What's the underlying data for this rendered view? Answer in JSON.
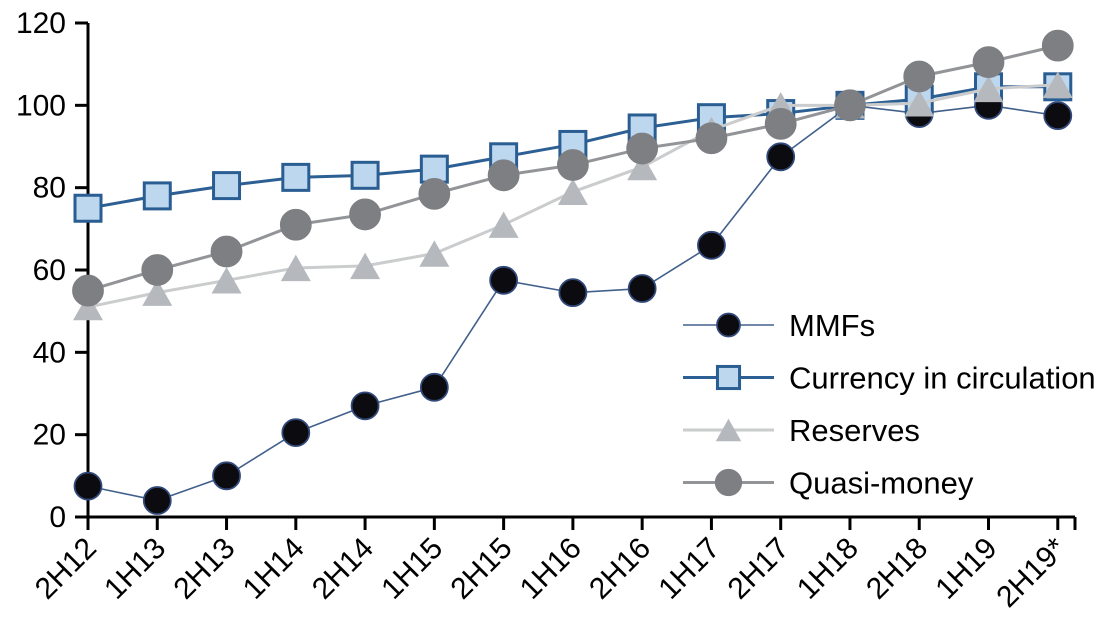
{
  "chart_data": {
    "type": "line",
    "title": "",
    "xlabel": "",
    "ylabel": "",
    "categories": [
      "2H12",
      "1H13",
      "2H13",
      "1H14",
      "2H14",
      "1H15",
      "2H15",
      "1H16",
      "2H16",
      "1H17",
      "2H17",
      "1H18",
      "2H18",
      "1H19",
      "2H19*"
    ],
    "series": [
      {
        "name": "MMFs",
        "marker": "circle",
        "marker_fill": "#0b0b10",
        "marker_stroke": "#32497a",
        "line_color": "#42608c",
        "line_width": 1.6,
        "marker_size": 27,
        "values": [
          7.5,
          4,
          10,
          20.5,
          27,
          31.5,
          57.5,
          54.5,
          55.5,
          66,
          87.5,
          100,
          98,
          100,
          97.5
        ]
      },
      {
        "name": "Currency in circulation",
        "marker": "square",
        "marker_fill": "#bdd7ee",
        "marker_stroke": "#2a5d92",
        "line_color": "#2c5f93",
        "line_width": 3,
        "marker_size": 26,
        "values": [
          75,
          78,
          80.5,
          82.5,
          83,
          84.5,
          87.5,
          90.5,
          94.5,
          97,
          98,
          100,
          101.5,
          104.5,
          104.5
        ]
      },
      {
        "name": "Reserves",
        "marker": "triangle",
        "marker_fill": "#b5b8bd",
        "marker_stroke": "#b5b8bd",
        "line_color": "#cacccd",
        "line_width": 3,
        "marker_size": 30,
        "values": [
          51,
          54.5,
          57.5,
          60.5,
          61,
          64,
          71,
          79,
          85,
          94,
          100,
          100,
          100.5,
          104,
          105
        ]
      },
      {
        "name": "Quasi-money",
        "marker": "circle",
        "marker_fill": "#7d7f83",
        "marker_stroke": "#7d7f83",
        "line_color": "#929497",
        "line_width": 3,
        "marker_size": 30,
        "values": [
          55,
          60,
          64.5,
          71,
          73.5,
          78.5,
          83,
          85.5,
          89.5,
          92,
          95.5,
          100,
          107,
          110.5,
          114.5
        ]
      }
    ],
    "y_axis": {
      "min": 0,
      "max": 120,
      "step": 20,
      "tick_labels": [
        "0",
        "20",
        "40",
        "60",
        "80",
        "100",
        "120"
      ]
    },
    "x_axis": {
      "label_rotation_deg": -45
    },
    "legend": {
      "position": "inside-right",
      "entries": [
        "MMFs",
        "Currency in circulation",
        "Reserves",
        "Quasi-money"
      ]
    },
    "grid": false,
    "axis_color": "#000000",
    "background": "#ffffff"
  }
}
